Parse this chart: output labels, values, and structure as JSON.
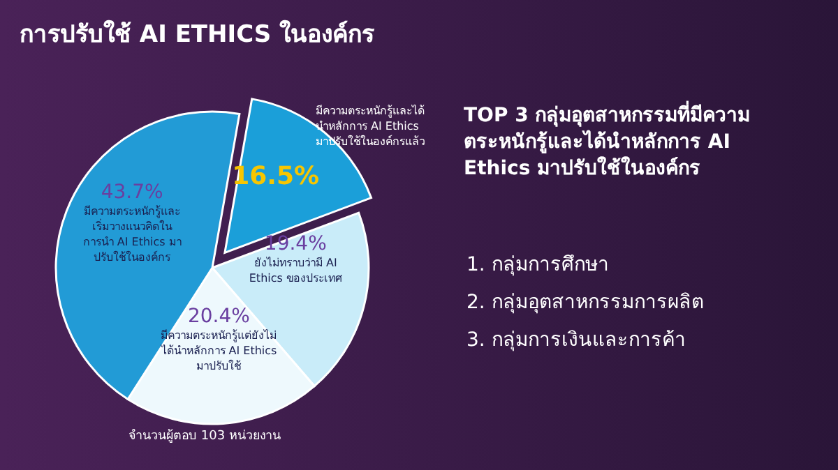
{
  "chart_data": {
    "type": "pie",
    "title": "การปรับใช้ AI ETHICS ในองค์กร",
    "categories": [
      "มีความตระหนักรู้และได้นำหลักการ AI Ethics มาปรับใช้ในองค์กรแล้ว",
      "ยังไม่ทราบว่ามี AI Ethics ของประเทศ",
      "มีความตระหนักรู้แต่ยังไม่ได้นำหลักการ AI Ethics มาปรับใช้",
      "มีความตระหนักรู้และเริ่มวางแนวคิดในการนำ AI Ethics มาปรับใช้ในองค์กร"
    ],
    "values": [
      16.5,
      19.4,
      20.4,
      43.7
    ],
    "value_labels": [
      "16.5%",
      "19.4%",
      "20.4%",
      "43.7%"
    ],
    "colors": [
      "#1b9fd9",
      "#c9ecf9",
      "#eef9fd",
      "#229bd6"
    ],
    "annotations": [
      "TOP 3 กลุ่มอุตสาหกรรมที่มีความตระหนักรู้และได้นำหลักการ AI Ethics มาปรับใช้ในองค์กร",
      "1. กลุ่มการศึกษา",
      "2. กลุ่มอุตสาหกรรมการผลิต",
      "3. กลุ่มการเงินและการค้า",
      "จำนวนผู้ตอบ 103 หน่วยงาน"
    ]
  }
}
